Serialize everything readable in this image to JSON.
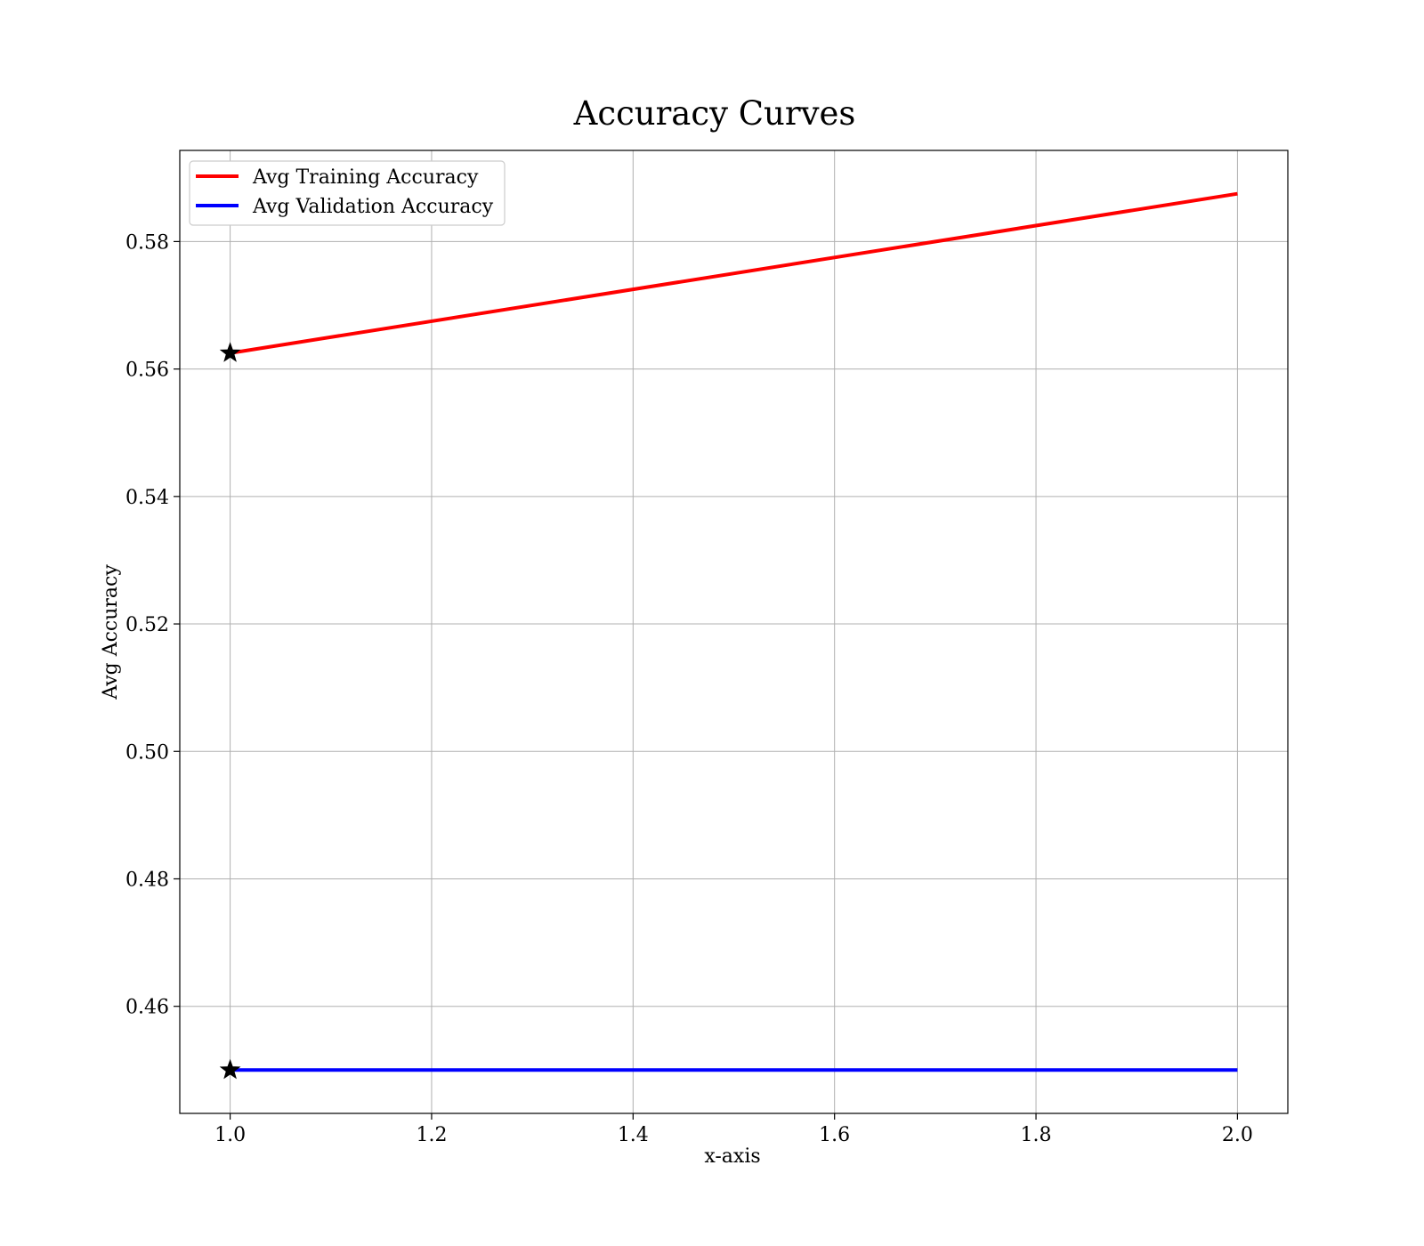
{
  "chart_data": {
    "type": "line",
    "title": "Accuracy Curves",
    "xlabel": "x-axis",
    "ylabel": "Avg Accuracy",
    "xlim": [
      0.95,
      2.05
    ],
    "ylim": [
      0.4432,
      0.5943
    ],
    "x_ticks": [
      "1.0",
      "1.2",
      "1.4",
      "1.6",
      "1.8",
      "2.0"
    ],
    "y_ticks": [
      "0.46",
      "0.48",
      "0.50",
      "0.52",
      "0.54",
      "0.56",
      "0.58"
    ],
    "grid": true,
    "legend_position": "top-left",
    "series": [
      {
        "name": "Avg Training Accuracy",
        "color": "#ff0000",
        "x": [
          1.0,
          2.0
        ],
        "y": [
          0.5625,
          0.5875
        ]
      },
      {
        "name": "Avg Validation Accuracy",
        "color": "#0000ff",
        "x": [
          1.0,
          2.0
        ],
        "y": [
          0.45,
          0.45
        ]
      }
    ],
    "markers": [
      {
        "series": "Avg Training Accuracy",
        "x": 1.0,
        "y": 0.5625,
        "symbol": "star",
        "color": "#000000"
      },
      {
        "series": "Avg Validation Accuracy",
        "x": 1.0,
        "y": 0.45,
        "symbol": "star",
        "color": "#000000"
      }
    ]
  }
}
